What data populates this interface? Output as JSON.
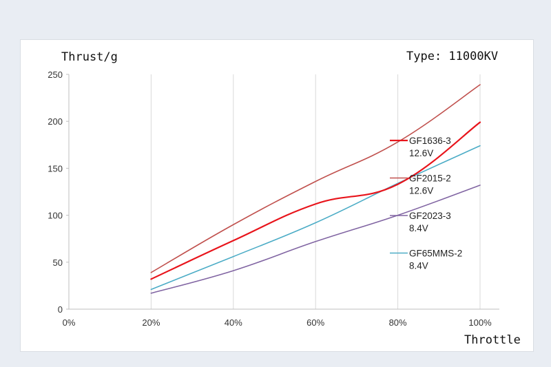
{
  "chart_data": {
    "type": "line",
    "title": "Thrust/g",
    "subtitle": "Type: 11000KV",
    "xlabel": "Throttle",
    "ylabel": "Thrust/g",
    "x": [
      "20%",
      "40%",
      "60%",
      "80%",
      "100%"
    ],
    "x_values": [
      20,
      40,
      60,
      80,
      100
    ],
    "x_ticks": [
      "0%",
      "20%",
      "40%",
      "60%",
      "80%",
      "100%"
    ],
    "xlim": [
      0,
      100
    ],
    "y_ticks": [
      "0",
      "50",
      "100",
      "150",
      "200",
      "250"
    ],
    "ylim": [
      0,
      250
    ],
    "grid": "vertical",
    "legend_position": "right",
    "series": [
      {
        "name": "GF1636-3",
        "sub": "12.6V",
        "color": "#e8141b",
        "width": 2.2,
        "values": [
          32,
          73,
          112,
          133,
          199
        ]
      },
      {
        "name": "GF2015-2",
        "sub": "12.6V",
        "color": "#c0504d",
        "width": 1.6,
        "values": [
          39,
          90,
          136,
          178,
          239
        ]
      },
      {
        "name": "GF2023-3",
        "sub": "8.4V",
        "color": "#8064a2",
        "width": 1.6,
        "values": [
          17,
          41,
          72,
          100,
          132
        ]
      },
      {
        "name": "GF65MMS-2",
        "sub": "8.4V",
        "color": "#4bacc6",
        "width": 1.6,
        "values": [
          21,
          56,
          92,
          134,
          174
        ]
      }
    ]
  }
}
